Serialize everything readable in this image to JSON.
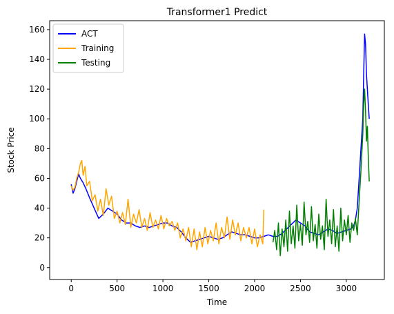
{
  "chart_data": {
    "type": "line",
    "title": "Transformer1 Predict",
    "xlabel": "Time",
    "ylabel": "Stock Price",
    "xlim": [
      -235,
      3415
    ],
    "ylim": [
      -8,
      166
    ],
    "xticks": [
      0,
      500,
      1000,
      1500,
      2000,
      2500,
      3000
    ],
    "yticks": [
      0,
      20,
      40,
      60,
      80,
      100,
      120,
      140,
      160
    ],
    "grid": false,
    "legend": "top-left",
    "series": [
      {
        "name": "ACT",
        "color": "#0000ff",
        "x": [
          0,
          20,
          40,
          60,
          80,
          100,
          130,
          160,
          200,
          250,
          300,
          350,
          400,
          450,
          500,
          550,
          600,
          650,
          700,
          750,
          800,
          850,
          900,
          950,
          1000,
          1050,
          1100,
          1150,
          1200,
          1250,
          1300,
          1350,
          1400,
          1450,
          1500,
          1550,
          1600,
          1650,
          1700,
          1750,
          1800,
          1850,
          1900,
          1950,
          2000,
          2050,
          2100,
          2150,
          2200,
          2250,
          2300,
          2350,
          2400,
          2450,
          2500,
          2550,
          2600,
          2650,
          2700,
          2750,
          2800,
          2850,
          2900,
          2950,
          3000,
          3050,
          3080,
          3100,
          3120,
          3140,
          3160,
          3180,
          3190,
          3200,
          3210,
          3220,
          3230,
          3240,
          3250
        ],
        "y": [
          56,
          50,
          53,
          58,
          63,
          60,
          57,
          53,
          47,
          40,
          33,
          36,
          40,
          38,
          36,
          32,
          30,
          30,
          28,
          27,
          28,
          27,
          28,
          29,
          30,
          30,
          28,
          27,
          24,
          20,
          17,
          18,
          19,
          20,
          21,
          20,
          19,
          20,
          22,
          24,
          23,
          22,
          22,
          21,
          20,
          20,
          21,
          22,
          21,
          21,
          23,
          26,
          29,
          32,
          30,
          28,
          24,
          23,
          22,
          24,
          26,
          25,
          23,
          24,
          25,
          26,
          28,
          32,
          40,
          60,
          80,
          100,
          130,
          157,
          150,
          130,
          120,
          110,
          100
        ]
      },
      {
        "name": "Training",
        "color": "#ffa500",
        "x": [
          0,
          20,
          40,
          60,
          80,
          100,
          115,
          130,
          150,
          170,
          200,
          230,
          260,
          290,
          320,
          350,
          380,
          410,
          440,
          470,
          500,
          530,
          560,
          590,
          620,
          650,
          680,
          710,
          740,
          770,
          800,
          830,
          860,
          890,
          920,
          950,
          980,
          1010,
          1040,
          1070,
          1100,
          1130,
          1160,
          1190,
          1220,
          1250,
          1280,
          1310,
          1340,
          1370,
          1400,
          1430,
          1460,
          1490,
          1520,
          1550,
          1580,
          1610,
          1640,
          1670,
          1700,
          1730,
          1760,
          1790,
          1820,
          1850,
          1880,
          1910,
          1940,
          1970,
          2000,
          2030,
          2060,
          2090,
          2100
        ],
        "y": [
          55,
          52,
          54,
          60,
          64,
          70,
          72,
          62,
          68,
          55,
          58,
          45,
          49,
          38,
          46,
          35,
          53,
          42,
          48,
          33,
          38,
          30,
          37,
          29,
          46,
          27,
          36,
          30,
          39,
          27,
          33,
          25,
          37,
          27,
          32,
          26,
          35,
          26,
          33,
          28,
          31,
          25,
          30,
          20,
          26,
          18,
          27,
          14,
          26,
          12,
          24,
          14,
          27,
          16,
          25,
          18,
          30,
          16,
          27,
          20,
          34,
          19,
          32,
          22,
          30,
          18,
          27,
          20,
          27,
          16,
          26,
          14,
          22,
          16,
          39
        ]
      },
      {
        "name": "Testing",
        "color": "#008000",
        "x": [
          2200,
          2220,
          2240,
          2260,
          2280,
          2300,
          2320,
          2340,
          2360,
          2380,
          2400,
          2420,
          2440,
          2460,
          2480,
          2500,
          2520,
          2540,
          2560,
          2580,
          2600,
          2620,
          2640,
          2660,
          2680,
          2700,
          2720,
          2740,
          2760,
          2780,
          2800,
          2820,
          2840,
          2860,
          2880,
          2900,
          2920,
          2940,
          2960,
          2980,
          3000,
          3020,
          3040,
          3060,
          3080,
          3100,
          3120,
          3140,
          3160,
          3180,
          3190,
          3200,
          3210,
          3220,
          3230,
          3240,
          3250
        ],
        "y": [
          17,
          25,
          12,
          30,
          8,
          26,
          14,
          32,
          11,
          38,
          16,
          28,
          13,
          42,
          18,
          29,
          15,
          44,
          22,
          31,
          17,
          41,
          18,
          29,
          13,
          36,
          19,
          28,
          12,
          46,
          21,
          32,
          16,
          39,
          14,
          28,
          11,
          40,
          18,
          32,
          22,
          35,
          17,
          30,
          25,
          33,
          22,
          45,
          65,
          90,
          110,
          120,
          105,
          85,
          95,
          75,
          58
        ]
      }
    ]
  }
}
